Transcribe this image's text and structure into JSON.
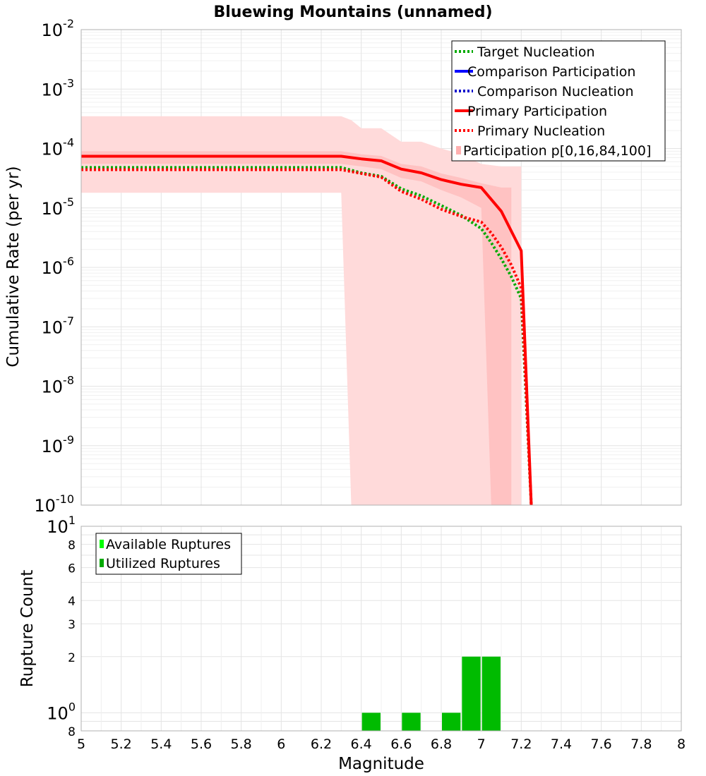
{
  "chart_data": [
    {
      "type": "line",
      "title": "Bluewing Mountains (unnamed)",
      "ylabel": "Cumulative Rate (per yr)",
      "xlabel": "",
      "xlim": [
        5,
        8
      ],
      "ylim": [
        1e-10,
        0.01
      ],
      "yscale": "log",
      "grid": true,
      "legend_position": "top-right",
      "yticks": [
        {
          "mant": "10",
          "exp": "-2"
        },
        {
          "mant": "10",
          "exp": "-3"
        },
        {
          "mant": "10",
          "exp": "-4"
        },
        {
          "mant": "10",
          "exp": "-5"
        },
        {
          "mant": "10",
          "exp": "-6"
        },
        {
          "mant": "10",
          "exp": "-7"
        },
        {
          "mant": "10",
          "exp": "-8"
        },
        {
          "mant": "10",
          "exp": "-9"
        },
        {
          "mant": "10",
          "exp": "-10"
        }
      ],
      "legend": [
        {
          "label": "Target Nucleation",
          "color": "#00aa00",
          "style": "dotted"
        },
        {
          "label": "Comparison Participation",
          "color": "#0000ff",
          "style": "solid"
        },
        {
          "label": "Comparison Nucleation",
          "color": "#0000cc",
          "style": "dotted"
        },
        {
          "label": "Primary Participation",
          "color": "#ff0000",
          "style": "solid"
        },
        {
          "label": "Primary Nucleation",
          "color": "#ff0000",
          "style": "dotted"
        },
        {
          "label": "Participation p[0,16,84,100]",
          "color": "#ffb0b0",
          "style": "band"
        }
      ],
      "bands": {
        "outer": {
          "x": [
            5.0,
            6.3,
            6.35,
            6.4,
            6.5,
            6.6,
            6.7,
            6.8,
            6.9,
            7.0,
            7.1,
            7.2
          ],
          "lower": [
            1.8e-05,
            1.8e-05,
            1e-10,
            1e-10,
            1e-10,
            1e-10,
            1e-10,
            1e-10,
            1e-10,
            1e-10,
            1e-10,
            1e-10
          ],
          "upper": [
            0.00035,
            0.00035,
            0.0003,
            0.00022,
            0.00022,
            0.00013,
            0.00013,
            0.0001,
            8e-05,
            5.5e-05,
            5e-05,
            5e-05
          ]
        },
        "inner": {
          "x": [
            5.0,
            6.3,
            6.4,
            6.5,
            6.6,
            6.7,
            6.8,
            6.9,
            7.0,
            7.05,
            7.1,
            7.15
          ],
          "lower": [
            5.5e-05,
            5.5e-05,
            5e-05,
            4.5e-05,
            3.2e-05,
            2.8e-05,
            2e-05,
            1.5e-05,
            1e-05,
            1e-10,
            1e-10,
            1e-10
          ],
          "upper": [
            9e-05,
            9e-05,
            8e-05,
            7.5e-05,
            5.5e-05,
            5e-05,
            3.8e-05,
            3.2e-05,
            2.6e-05,
            2.4e-05,
            2.2e-05,
            2.2e-05
          ]
        }
      },
      "series": [
        {
          "name": "Target Nucleation",
          "color": "#00aa00",
          "style": "dotted",
          "x": [
            5.0,
            6.3,
            6.4,
            6.5,
            6.6,
            6.7,
            6.8,
            6.9,
            7.0,
            7.05,
            7.1,
            7.15,
            7.2,
            7.25
          ],
          "y": [
            4.8e-05,
            4.8e-05,
            3.9e-05,
            3.4e-05,
            2.1e-05,
            1.6e-05,
            1.1e-05,
            7.5e-06,
            4.5e-06,
            2.6e-06,
            1.4e-06,
            7e-07,
            3e-07,
            1e-10
          ]
        },
        {
          "name": "Primary Participation",
          "color": "#ff0000",
          "style": "solid",
          "x": [
            5.0,
            6.3,
            6.4,
            6.5,
            6.6,
            6.7,
            6.8,
            6.9,
            7.0,
            7.1,
            7.2,
            7.25
          ],
          "y": [
            7.4e-05,
            7.4e-05,
            6.7e-05,
            6.2e-05,
            4.5e-05,
            3.9e-05,
            3e-05,
            2.5e-05,
            2.2e-05,
            8.8e-06,
            1.9e-06,
            1e-10
          ]
        },
        {
          "name": "Primary Nucleation",
          "color": "#ff0000",
          "style": "dotted",
          "x": [
            5.0,
            6.3,
            6.4,
            6.5,
            6.6,
            6.7,
            6.8,
            6.9,
            7.0,
            7.05,
            7.1,
            7.15,
            7.2,
            7.25
          ],
          "y": [
            4.4e-05,
            4.4e-05,
            3.8e-05,
            3.3e-05,
            1.9e-05,
            1.4e-05,
            9.5e-06,
            7.2e-06,
            5.8e-06,
            3.8e-06,
            2.2e-06,
            1.1e-06,
            4.5e-07,
            1e-10
          ]
        }
      ]
    },
    {
      "type": "bar",
      "title": "",
      "xlabel": "Magnitude",
      "ylabel": "Rupture Count",
      "xlim": [
        5,
        8
      ],
      "yscale": "log",
      "grid": true,
      "legend_position": "top-left",
      "xticks": [
        "5",
        "5.2",
        "5.4",
        "5.6",
        "5.8",
        "6",
        "6.2",
        "6.4",
        "6.6",
        "6.8",
        "7",
        "7.2",
        "7.4",
        "7.6",
        "7.8",
        "8"
      ],
      "yticks": [
        {
          "mant": "10",
          "exp": "1",
          "value": 10
        },
        {
          "mant": "8",
          "exp": "",
          "value": 8
        },
        {
          "mant": "6",
          "exp": "",
          "value": 6
        },
        {
          "mant": "4",
          "exp": "",
          "value": 4
        },
        {
          "mant": "3",
          "exp": "",
          "value": 3
        },
        {
          "mant": "2",
          "exp": "",
          "value": 2
        },
        {
          "mant": "10",
          "exp": "0",
          "value": 1
        },
        {
          "mant": "8",
          "exp": "",
          "value": 0.8
        }
      ],
      "legend": [
        {
          "label": "Available Ruptures",
          "color": "#00ff00"
        },
        {
          "label": "Utilized Ruptures",
          "color": "#00aa00"
        }
      ],
      "bars": [
        {
          "x": 6.45,
          "value": 1
        },
        {
          "x": 6.65,
          "value": 1
        },
        {
          "x": 6.85,
          "value": 1
        },
        {
          "x": 6.95,
          "value": 2
        },
        {
          "x": 7.05,
          "value": 2
        }
      ],
      "bar_width": 0.1,
      "ylim": [
        0.8,
        10
      ]
    }
  ]
}
